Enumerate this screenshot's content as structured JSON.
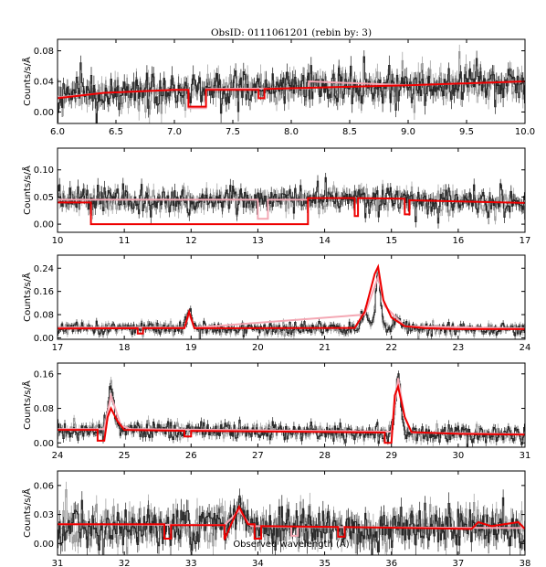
{
  "figure": {
    "title": "ObsID: 0111061201 (rebin by: 3)",
    "xlabel": "Observed wavelength (Å)",
    "ylabel": "Counts/s/Å",
    "colors": {
      "data_dark": "#222222",
      "data_light": "#999999",
      "model_red": "#ee0000",
      "model_pink": "#f4a8b4"
    }
  },
  "chart_data": [
    {
      "type": "line",
      "xlim": [
        6,
        10
      ],
      "ylim": [
        -0.015,
        0.095
      ],
      "x_ticks": [
        "6.0",
        "6.5",
        "7.0",
        "7.5",
        "8.0",
        "8.5",
        "9.0",
        "9.5",
        "10.0"
      ],
      "y_ticks": [
        "0.00",
        "0.04",
        "0.08"
      ],
      "x_tick_values": [
        6.0,
        6.5,
        7.0,
        7.5,
        8.0,
        8.5,
        9.0,
        9.5,
        10.0
      ],
      "y_tick_values": [
        0.0,
        0.04,
        0.08
      ],
      "noise_sd": 0.012,
      "baseline": [
        [
          6.0,
          0.017
        ],
        [
          6.3,
          0.024
        ],
        [
          7.0,
          0.029
        ],
        [
          8.0,
          0.031
        ],
        [
          9.0,
          0.034
        ],
        [
          10.0,
          0.038
        ]
      ],
      "lines": [],
      "model_red": [
        [
          6.0,
          0.018
        ],
        [
          6.4,
          0.025
        ],
        [
          7.0,
          0.029
        ],
        [
          7.12,
          0.029
        ],
        [
          7.12,
          0.007
        ],
        [
          7.27,
          0.007
        ],
        [
          7.27,
          0.029
        ],
        [
          7.72,
          0.029
        ],
        [
          7.72,
          0.018
        ],
        [
          7.77,
          0.018
        ],
        [
          7.77,
          0.03
        ],
        [
          8.0,
          0.031
        ],
        [
          9.0,
          0.035
        ],
        [
          10.0,
          0.04
        ]
      ],
      "model_pink": [
        [
          6.0,
          0.019
        ],
        [
          6.4,
          0.025
        ],
        [
          7.0,
          0.029
        ],
        [
          7.12,
          0.029
        ],
        [
          7.12,
          0.005
        ],
        [
          7.27,
          0.005
        ],
        [
          7.27,
          0.03
        ],
        [
          8.15,
          0.031
        ],
        [
          8.15,
          0.04
        ],
        [
          9.0,
          0.035
        ],
        [
          10.0,
          0.04
        ]
      ]
    },
    {
      "type": "line",
      "xlim": [
        10,
        17
      ],
      "ylim": [
        -0.015,
        0.14
      ],
      "x_ticks": [
        "10",
        "11",
        "12",
        "13",
        "14",
        "15",
        "16",
        "17"
      ],
      "y_ticks": [
        "0.00",
        "0.05",
        "0.10"
      ],
      "x_tick_values": [
        10,
        11,
        12,
        13,
        14,
        15,
        16,
        17
      ],
      "y_tick_values": [
        0.0,
        0.05,
        0.1
      ],
      "noise_sd": 0.012,
      "baseline": [
        [
          10.0,
          0.042
        ],
        [
          13.7,
          0.047
        ],
        [
          14.5,
          0.048
        ],
        [
          17.0,
          0.04
        ]
      ],
      "lines": [],
      "model_red": [
        [
          10.0,
          0.04
        ],
        [
          10.5,
          0.04
        ],
        [
          10.5,
          0.0
        ],
        [
          13.75,
          0.0
        ],
        [
          13.75,
          0.048
        ],
        [
          14.45,
          0.048
        ],
        [
          14.45,
          0.015
        ],
        [
          14.5,
          0.015
        ],
        [
          14.5,
          0.048
        ],
        [
          15.2,
          0.047
        ],
        [
          15.2,
          0.018
        ],
        [
          15.27,
          0.018
        ],
        [
          15.27,
          0.044
        ],
        [
          17.0,
          0.039
        ]
      ],
      "model_pink": [
        [
          10.0,
          0.045
        ],
        [
          13.0,
          0.045
        ],
        [
          13.0,
          0.01
        ],
        [
          13.15,
          0.01
        ],
        [
          13.15,
          0.045
        ],
        [
          13.75,
          0.045
        ]
      ]
    },
    {
      "type": "line",
      "xlim": [
        17,
        24
      ],
      "ylim": [
        -0.005,
        0.285
      ],
      "x_ticks": [
        "17",
        "18",
        "19",
        "20",
        "21",
        "22",
        "23",
        "24"
      ],
      "y_ticks": [
        "0.00",
        "0.08",
        "0.16",
        "0.24"
      ],
      "x_tick_values": [
        17,
        18,
        19,
        20,
        21,
        22,
        23,
        24
      ],
      "y_tick_values": [
        0.0,
        0.08,
        0.16,
        0.24
      ],
      "noise_sd": 0.011,
      "baseline": [
        [
          17.0,
          0.033
        ],
        [
          18.0,
          0.034
        ],
        [
          20.0,
          0.03
        ],
        [
          22.0,
          0.032
        ],
        [
          24.0,
          0.03
        ]
      ],
      "lines": [
        [
          18.97,
          0.06,
          0.04
        ],
        [
          21.6,
          0.055,
          0.05
        ],
        [
          21.8,
          0.2,
          0.035
        ],
        [
          22.1,
          0.03,
          0.06
        ]
      ],
      "model_red": [
        [
          17.0,
          0.032
        ],
        [
          18.2,
          0.033
        ],
        [
          18.2,
          0.015
        ],
        [
          18.28,
          0.015
        ],
        [
          18.28,
          0.033
        ],
        [
          18.9,
          0.033
        ],
        [
          18.97,
          0.09
        ],
        [
          19.05,
          0.033
        ],
        [
          21.45,
          0.034
        ],
        [
          21.6,
          0.09
        ],
        [
          21.75,
          0.22
        ],
        [
          21.8,
          0.245
        ],
        [
          21.88,
          0.13
        ],
        [
          22.0,
          0.07
        ],
        [
          22.2,
          0.04
        ],
        [
          22.5,
          0.033
        ],
        [
          23.0,
          0.03
        ],
        [
          24.0,
          0.03
        ]
      ],
      "model_pink": [
        [
          17.0,
          0.035
        ],
        [
          18.9,
          0.035
        ],
        [
          18.97,
          0.08
        ],
        [
          19.05,
          0.035
        ],
        [
          21.6,
          0.08
        ],
        [
          21.8,
          0.21
        ],
        [
          21.9,
          0.11
        ],
        [
          22.2,
          0.04
        ],
        [
          24.0,
          0.032
        ]
      ]
    },
    {
      "type": "line",
      "xlim": [
        24,
        31
      ],
      "ylim": [
        -0.01,
        0.185
      ],
      "x_ticks": [
        "24",
        "25",
        "26",
        "27",
        "28",
        "29",
        "30",
        "31"
      ],
      "y_ticks": [
        "0.00",
        "0.08",
        "0.16"
      ],
      "x_tick_values": [
        24,
        25,
        26,
        27,
        28,
        29,
        30,
        31
      ],
      "y_tick_values": [
        0.0,
        0.08,
        0.16
      ],
      "noise_sd": 0.01,
      "baseline": [
        [
          24.0,
          0.03
        ],
        [
          25.0,
          0.032
        ],
        [
          28.0,
          0.025
        ],
        [
          30.0,
          0.02
        ],
        [
          31.0,
          0.018
        ]
      ],
      "lines": [
        [
          24.8,
          0.1,
          0.04
        ],
        [
          29.1,
          0.13,
          0.04
        ]
      ],
      "model_red": [
        [
          24.0,
          0.03
        ],
        [
          24.6,
          0.03
        ],
        [
          24.6,
          0.005
        ],
        [
          24.7,
          0.005
        ],
        [
          24.75,
          0.06
        ],
        [
          24.8,
          0.08
        ],
        [
          24.9,
          0.05
        ],
        [
          25.0,
          0.03
        ],
        [
          25.9,
          0.028
        ],
        [
          25.9,
          0.015
        ],
        [
          26.0,
          0.015
        ],
        [
          26.0,
          0.028
        ],
        [
          28.2,
          0.025
        ],
        [
          28.9,
          0.024
        ],
        [
          28.9,
          0.0
        ],
        [
          29.0,
          0.0
        ],
        [
          29.05,
          0.11
        ],
        [
          29.1,
          0.13
        ],
        [
          29.2,
          0.06
        ],
        [
          29.3,
          0.025
        ],
        [
          30.0,
          0.021
        ],
        [
          31.0,
          0.019
        ]
      ],
      "model_pink": [
        [
          24.0,
          0.032
        ],
        [
          24.7,
          0.032
        ],
        [
          24.8,
          0.11
        ],
        [
          24.95,
          0.04
        ],
        [
          25.1,
          0.032
        ],
        [
          29.0,
          0.026
        ],
        [
          29.1,
          0.15
        ],
        [
          29.2,
          0.06
        ],
        [
          29.3,
          0.024
        ],
        [
          31.0,
          0.02
        ]
      ]
    },
    {
      "type": "line",
      "xlim": [
        31,
        38
      ],
      "ylim": [
        -0.012,
        0.075
      ],
      "x_ticks": [
        "31",
        "32",
        "33",
        "34",
        "35",
        "36",
        "37",
        "38"
      ],
      "y_ticks": [
        "0.00",
        "0.03",
        "0.06"
      ],
      "x_tick_values": [
        31,
        32,
        33,
        34,
        35,
        36,
        37,
        38
      ],
      "y_tick_values": [
        0.0,
        0.03,
        0.06
      ],
      "noise_sd": 0.011,
      "baseline": [
        [
          31.0,
          0.018
        ],
        [
          33.0,
          0.018
        ],
        [
          35.0,
          0.016
        ],
        [
          38.0,
          0.015
        ]
      ],
      "lines": [
        [
          33.72,
          0.02,
          0.08
        ]
      ],
      "model_red": [
        [
          31.0,
          0.02
        ],
        [
          32.6,
          0.02
        ],
        [
          32.6,
          0.005
        ],
        [
          32.7,
          0.005
        ],
        [
          32.7,
          0.019
        ],
        [
          33.5,
          0.019
        ],
        [
          33.5,
          0.004
        ],
        [
          33.6,
          0.02
        ],
        [
          33.72,
          0.038
        ],
        [
          33.85,
          0.02
        ],
        [
          33.95,
          0.02
        ],
        [
          33.95,
          0.005
        ],
        [
          34.05,
          0.005
        ],
        [
          34.05,
          0.018
        ],
        [
          35.2,
          0.017
        ],
        [
          35.2,
          0.007
        ],
        [
          35.3,
          0.007
        ],
        [
          35.3,
          0.017
        ],
        [
          37.2,
          0.015
        ],
        [
          37.3,
          0.022
        ],
        [
          37.5,
          0.018
        ],
        [
          37.9,
          0.022
        ],
        [
          38.0,
          0.015
        ]
      ],
      "model_pink": [
        [
          31.0,
          0.02
        ],
        [
          33.5,
          0.019
        ],
        [
          33.72,
          0.034
        ],
        [
          33.9,
          0.018
        ],
        [
          34.5,
          0.017
        ],
        [
          34.5,
          0.008
        ],
        [
          34.6,
          0.008
        ],
        [
          34.6,
          0.017
        ],
        [
          38.0,
          0.016
        ]
      ]
    }
  ]
}
